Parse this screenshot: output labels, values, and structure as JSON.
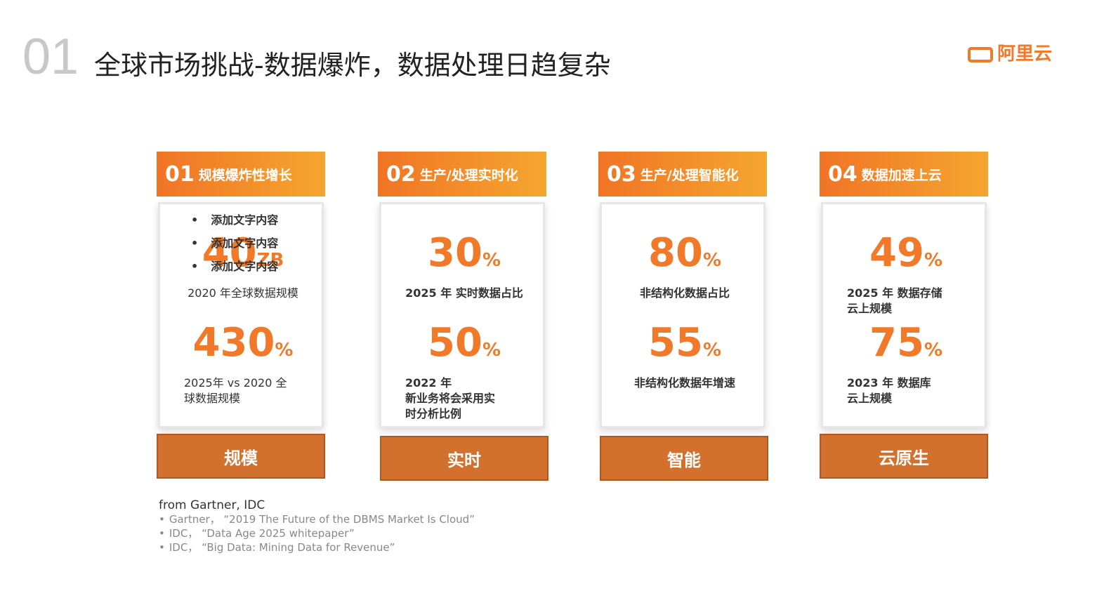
{
  "header": {
    "number": "01",
    "title": "全球市场挑战-数据爆炸，数据处理日趋复杂",
    "logo": "阿里云"
  },
  "cards": [
    {
      "num": "01",
      "heading": "规模爆炸性增长",
      "bullets": [
        "添加文字内容",
        "添加文字内容",
        "添加文字内容"
      ],
      "stats": [
        {
          "value": "40",
          "unit": "ZB",
          "label": [
            "2020 年全球数据规模"
          ]
        },
        {
          "value": "430",
          "unit": "%",
          "label": [
            "2025年 vs 2020 全",
            "球数据规模"
          ]
        }
      ],
      "footer": "规模"
    },
    {
      "num": "02",
      "heading": "生产/处理实时化",
      "stats": [
        {
          "value": "30",
          "unit": "%",
          "label": [
            "2025 年 实时数据占比"
          ]
        },
        {
          "value": "50",
          "unit": "%",
          "label": [
            "2022 年",
            "新业务将会采用实",
            "时分析比例"
          ]
        }
      ],
      "footer": "实时"
    },
    {
      "num": "03",
      "heading": "生产/处理智能化",
      "stats": [
        {
          "value": "80",
          "unit": "%",
          "label": [
            "非结构化数据占比"
          ]
        },
        {
          "value": "55",
          "unit": "%",
          "label": [
            "非结构化数据年增速"
          ]
        }
      ],
      "footer": "智能"
    },
    {
      "num": "04",
      "heading": "数据加速上云",
      "stats": [
        {
          "value": "49",
          "unit": "%",
          "label": [
            "2025 年 数据存储",
            "云上规模"
          ]
        },
        {
          "value": "75",
          "unit": "%",
          "label": [
            "2023 年 数据库",
            "云上规模"
          ]
        }
      ],
      "footer": "云原生"
    }
  ],
  "sources": {
    "intro": "from  Gartner, IDC",
    "items": [
      "Gartner，  “2019  The Future of the DBMS Market Is Cloud”",
      "IDC，  “Data Age 2025 whitepaper”",
      "IDC，  “Big Data: Mining Data for Revenue”"
    ]
  }
}
